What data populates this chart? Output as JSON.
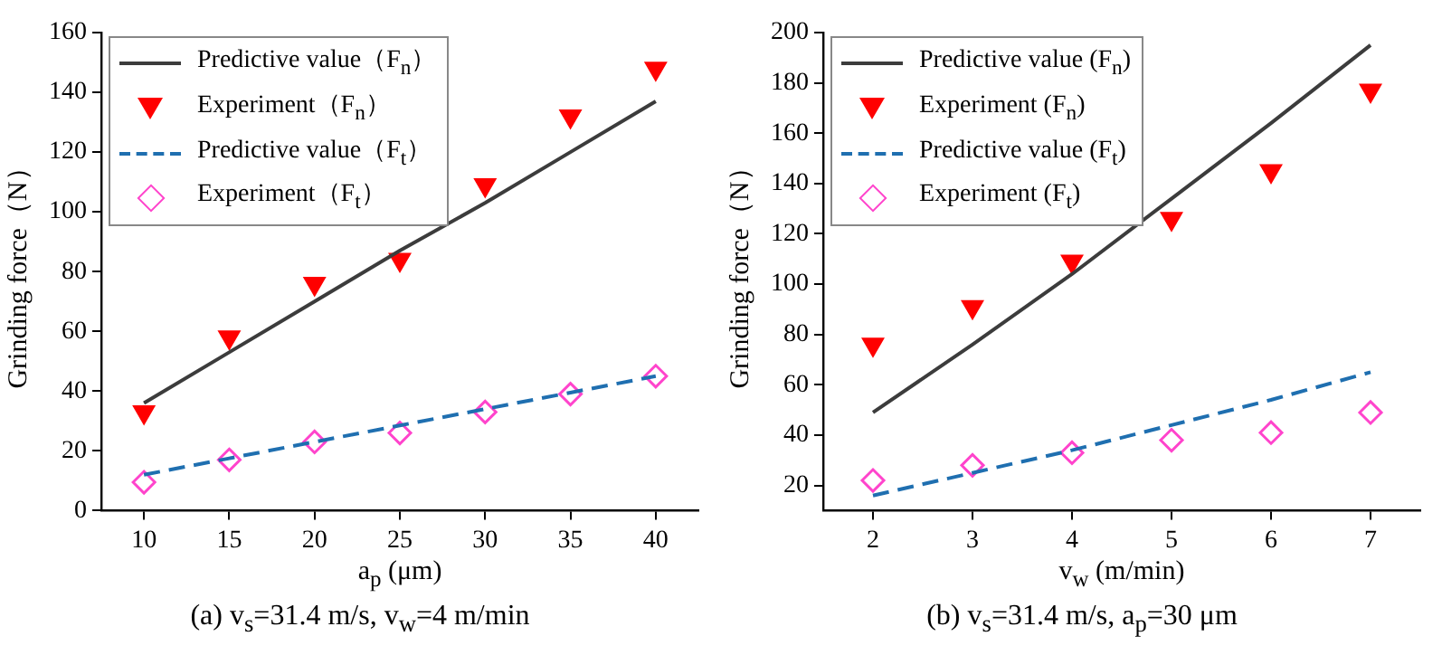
{
  "chart_data": [
    {
      "type": "line",
      "title": "(a) v$_{s}$=31.4 m/s, v$_{w}$=4 m/min",
      "xlabel": "a$_{p}$ (μm)",
      "ylabel": "Grinding force（N）",
      "x": [
        10,
        15,
        20,
        25,
        30,
        35,
        40
      ],
      "xlim": [
        7.5,
        42.5
      ],
      "xticks": [
        10,
        15,
        20,
        25,
        30,
        35,
        40
      ],
      "ylim": [
        0,
        160
      ],
      "yticks": [
        0,
        20,
        40,
        60,
        80,
        100,
        120,
        140,
        160
      ],
      "legend": "top left",
      "series": [
        {
          "name": "Predictive value（F$_{n}$）",
          "marker": "none",
          "line_style": "solid",
          "color": "#3c3c3c",
          "values": [
            36,
            53,
            70,
            87,
            103,
            120,
            137
          ]
        },
        {
          "name": "Experiment（F$_{n}$）",
          "type": "scatter",
          "marker": "triangle",
          "color": "#ff0000",
          "values": [
            33,
            58,
            76,
            84,
            109,
            132,
            148
          ]
        },
        {
          "name": "Predictive value（F$_{t}$）",
          "marker": "none",
          "line_style": "dashed",
          "color": "#1f6fb0",
          "values": [
            12,
            17.5,
            23,
            28.5,
            34,
            39.5,
            45
          ]
        },
        {
          "name": "Experiment（F$_{t}$）",
          "type": "scatter",
          "marker": "diamond",
          "color": "#ff44cc",
          "values": [
            9.5,
            17,
            23,
            26,
            33,
            39,
            45
          ]
        }
      ]
    },
    {
      "type": "line",
      "title": "(b) v$_{s}$=31.4 m/s, a$_{p}$=30 μm",
      "xlabel": "v$_{w}$ (m/min)",
      "ylabel": "Grinding force（N）",
      "x": [
        2,
        3,
        4,
        5,
        6,
        7
      ],
      "xlim": [
        1.5,
        7.5
      ],
      "xticks": [
        2,
        3,
        4,
        5,
        6,
        7
      ],
      "ylim": [
        10,
        200
      ],
      "yticks": [
        20,
        40,
        60,
        80,
        100,
        120,
        140,
        160,
        180,
        200
      ],
      "legend": "top left",
      "series": [
        {
          "name": "Predictive value (F$_{n}$)",
          "marker": "none",
          "line_style": "solid",
          "color": "#3c3c3c",
          "values": [
            49,
            76,
            104,
            134,
            164,
            195
          ]
        },
        {
          "name": "Experiment (F$_{n}$)",
          "type": "scatter",
          "marker": "triangle",
          "color": "#ff0000",
          "values": [
            76,
            91,
            109,
            126,
            145,
            177
          ]
        },
        {
          "name": "Predictive value (F$_{t}$)",
          "marker": "none",
          "line_style": "dashed",
          "color": "#1f6fb0",
          "values": [
            16,
            25,
            34,
            44,
            54,
            65
          ]
        },
        {
          "name": "Experiment (F$_{t}$)",
          "type": "scatter",
          "marker": "diamond",
          "color": "#ff44cc",
          "values": [
            22,
            28,
            33,
            38,
            41,
            49
          ]
        }
      ]
    }
  ]
}
